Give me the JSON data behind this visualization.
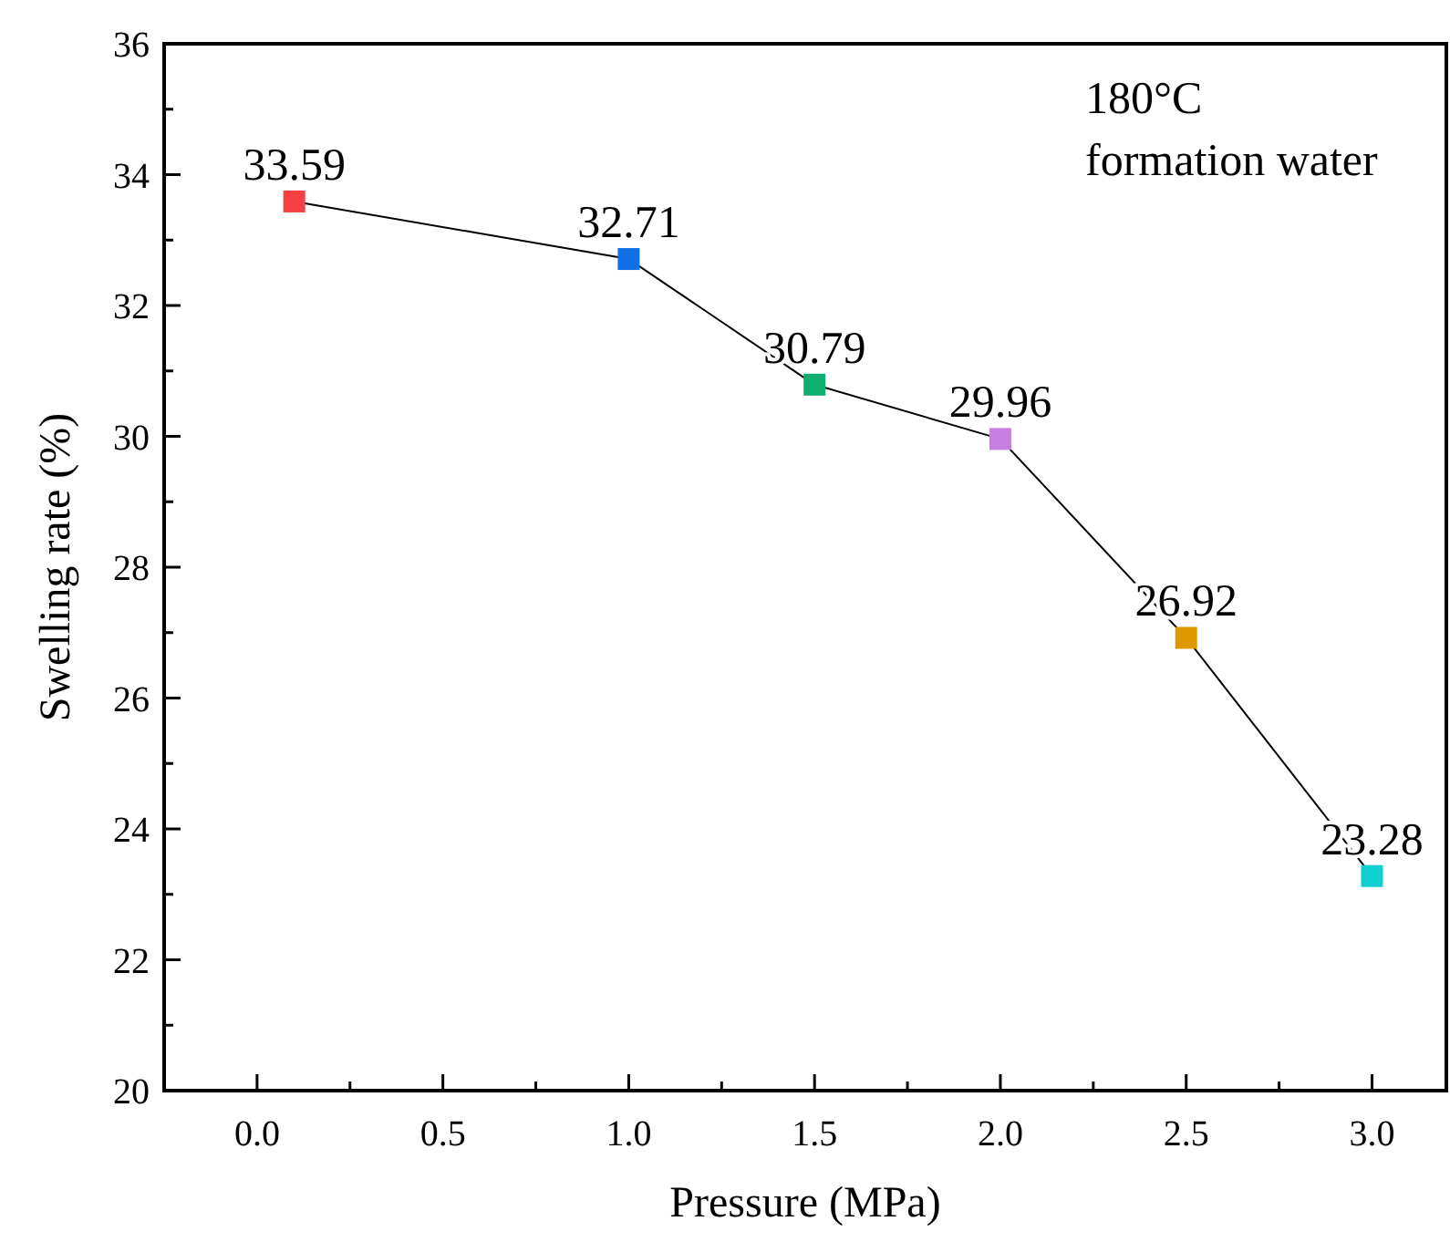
{
  "chart_data": {
    "type": "line",
    "xlabel": "Pressure (MPa)",
    "ylabel": "Swelling rate (%)",
    "annotations": [
      "180°C",
      "formation water"
    ],
    "x": [
      0.1,
      1.0,
      1.5,
      2.0,
      2.5,
      3.0
    ],
    "series": [
      {
        "color": "#000000",
        "colors": [
          "#f44040",
          "#1071e5",
          "#10b070",
          "#c87ee0",
          "#e09800",
          "#10cfd0"
        ],
        "values": [
          33.59,
          32.71,
          30.79,
          29.96,
          26.92,
          23.28
        ]
      }
    ],
    "data_labels": true,
    "marker": "square",
    "line_style": "solid",
    "grid": false,
    "xlim": [
      -0.25,
      3.2
    ],
    "xticks": [
      {
        "value": 0,
        "label": "0.0"
      },
      {
        "value": 0.25,
        "label": null
      },
      {
        "value": 0.5,
        "label": "0.5"
      },
      {
        "value": 0.75,
        "label": null
      },
      {
        "value": 1,
        "label": "1.0"
      },
      {
        "value": 1.25,
        "label": null
      },
      {
        "value": 1.5,
        "label": "1.5"
      },
      {
        "value": 1.75,
        "label": null
      },
      {
        "value": 2,
        "label": "2.0"
      },
      {
        "value": 2.25,
        "label": null
      },
      {
        "value": 2.5,
        "label": "2.5"
      },
      {
        "value": 2.75,
        "label": null
      },
      {
        "value": 3,
        "label": "3.0"
      }
    ],
    "ylim": [
      20,
      36
    ],
    "yticks": [
      20,
      {
        "value": 21,
        "label": null
      },
      22,
      {
        "value": 23,
        "label": null
      },
      24,
      {
        "value": 25,
        "label": null
      },
      26,
      {
        "value": 27,
        "label": null
      },
      28,
      {
        "value": 29,
        "label": null
      },
      30,
      {
        "value": 31,
        "label": null
      },
      32,
      {
        "value": 33,
        "label": null
      },
      34,
      {
        "value": 35,
        "label": null
      },
      36
    ]
  }
}
